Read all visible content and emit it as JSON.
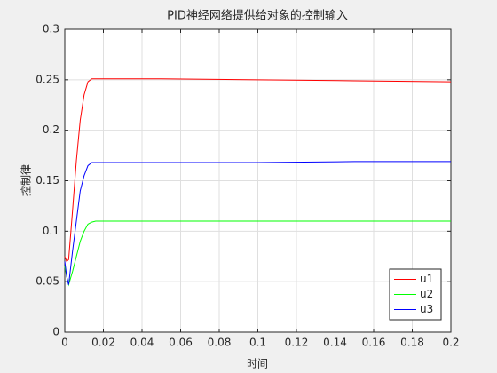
{
  "chart_data": {
    "type": "line",
    "title": "PID神经网络提供给对象的控制输入",
    "xlabel": "时间",
    "ylabel": "控制律",
    "x": [
      0,
      0.001,
      0.002,
      0.004,
      0.006,
      0.008,
      0.01,
      0.012,
      0.014,
      0.016,
      0.02,
      0.05,
      0.1,
      0.15,
      0.2
    ],
    "series": [
      {
        "name": "u1",
        "color": "#ff0000",
        "values": [
          0.075,
          0.07,
          0.072,
          0.12,
          0.17,
          0.21,
          0.235,
          0.248,
          0.251,
          0.251,
          0.251,
          0.251,
          0.25,
          0.249,
          0.248
        ]
      },
      {
        "name": "u2",
        "color": "#00ff00",
        "values": [
          0.065,
          0.055,
          0.047,
          0.06,
          0.075,
          0.09,
          0.1,
          0.107,
          0.109,
          0.11,
          0.11,
          0.11,
          0.11,
          0.11,
          0.11
        ]
      },
      {
        "name": "u3",
        "color": "#0000ff",
        "values": [
          0.07,
          0.055,
          0.047,
          0.08,
          0.11,
          0.14,
          0.155,
          0.165,
          0.168,
          0.168,
          0.168,
          0.168,
          0.168,
          0.169,
          0.169
        ]
      }
    ],
    "xlim": [
      0,
      0.2
    ],
    "xticks": [
      0,
      0.02,
      0.04,
      0.06,
      0.08,
      0.1,
      0.12,
      0.14,
      0.16,
      0.18,
      0.2
    ],
    "ylim": [
      0,
      0.3
    ],
    "yticks": [
      0,
      0.05,
      0.1,
      0.15,
      0.2,
      0.25,
      0.3
    ],
    "grid": true,
    "legend": "lower-right"
  }
}
